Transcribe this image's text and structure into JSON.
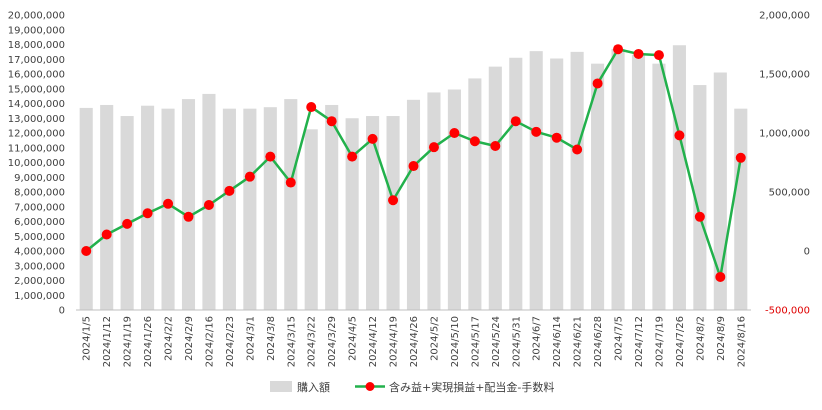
{
  "chart_data": {
    "type": "bar+line",
    "categories": [
      "2024/1/5",
      "2024/1/12",
      "2024/1/19",
      "2024/1/26",
      "2024/2/2",
      "2024/2/9",
      "2024/2/16",
      "2024/2/23",
      "2024/3/1",
      "2024/3/8",
      "2024/3/15",
      "2024/3/22",
      "2024/3/29",
      "2024/4/5",
      "2024/4/12",
      "2024/4/19",
      "2024/4/26",
      "2024/5/2",
      "2024/5/10",
      "2024/5/17",
      "2024/5/24",
      "2024/5/31",
      "2024/6/7",
      "2024/6/14",
      "2024/6/21",
      "2024/6/28",
      "2024/7/5",
      "2024/7/12",
      "2024/7/19",
      "2024/7/26",
      "2024/8/2",
      "2024/8/9",
      "2024/8/16"
    ],
    "series": [
      {
        "name": "購入額",
        "type": "bar",
        "axis": "left",
        "color": "#d9d9d9",
        "values": [
          13700000,
          13900000,
          13150000,
          13850000,
          13650000,
          14300000,
          14650000,
          13650000,
          13650000,
          13750000,
          14300000,
          12250000,
          13900000,
          13000000,
          13150000,
          13150000,
          14250000,
          14750000,
          14950000,
          15700000,
          16500000,
          17100000,
          17550000,
          17050000,
          17500000,
          16700000,
          17700000,
          17300000,
          16700000,
          17950000,
          15250000,
          16100000,
          13650000
        ]
      },
      {
        "name": "含み益+実現損益+配当金-手数料",
        "type": "line",
        "axis": "right",
        "color": "#22b14c",
        "marker_color": "#ff0000",
        "values": [
          0,
          140000,
          230000,
          320000,
          400000,
          290000,
          390000,
          510000,
          630000,
          800000,
          580000,
          1220000,
          1100000,
          800000,
          950000,
          430000,
          720000,
          880000,
          1000000,
          930000,
          890000,
          1100000,
          1010000,
          960000,
          860000,
          1420000,
          1710000,
          1670000,
          1660000,
          980000,
          290000,
          -220000,
          790000
        ]
      }
    ],
    "y_left": {
      "min": 0,
      "max": 20000000,
      "step": 1000000,
      "tick_labels": [
        "0",
        "1,000,000",
        "2,000,000",
        "3,000,000",
        "4,000,000",
        "5,000,000",
        "6,000,000",
        "7,000,000",
        "8,000,000",
        "9,000,000",
        "10,000,000",
        "11,000,000",
        "12,000,000",
        "13,000,000",
        "14,000,000",
        "15,000,000",
        "16,000,000",
        "17,000,000",
        "18,000,000",
        "19,000,000",
        "20,000,000"
      ]
    },
    "y_right": {
      "min": -500000,
      "max": 2000000,
      "step": 500000,
      "tick_labels": [
        "-500,000",
        "0",
        "500,000",
        "1,000,000",
        "1,500,000",
        "2,000,000"
      ],
      "negative_color": "#e00000"
    },
    "grid": false,
    "legend": {
      "position": "bottom"
    }
  }
}
